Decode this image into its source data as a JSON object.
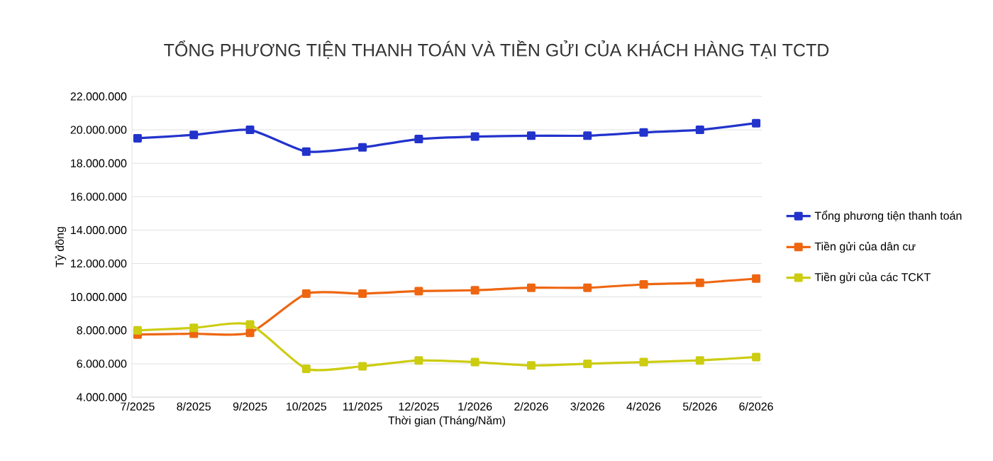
{
  "chart_data": {
    "type": "line",
    "title": "TỔNG PHƯƠNG TIỆN THANH TOÁN VÀ TIỀN GỬI CỦA KHÁCH HÀNG TẠI TCTD",
    "xlabel": "Thời gian (Tháng/Năm)",
    "ylabel": "Tỷ đồng",
    "categories": [
      "7/2025",
      "8/2025",
      "9/2025",
      "10/2025",
      "11/2025",
      "12/2025",
      "1/2026",
      "2/2026",
      "3/2026",
      "4/2026",
      "5/2026",
      "6/2026"
    ],
    "series": [
      {
        "name": "Tổng phương tiện thanh toán",
        "color": "#2233cc",
        "values": [
          19500000,
          19700000,
          20000000,
          18700000,
          18950000,
          19450000,
          19600000,
          19650000,
          19650000,
          19850000,
          20000000,
          20400000
        ]
      },
      {
        "name": "Tiền gửi của dân cư",
        "color": "#ee6611",
        "values": [
          7750000,
          7800000,
          7850000,
          10200000,
          10200000,
          10350000,
          10400000,
          10550000,
          10550000,
          10750000,
          10850000,
          11100000
        ]
      },
      {
        "name": "Tiền gửi của các TCKT",
        "color": "#cccc11",
        "values": [
          8000000,
          8150000,
          8350000,
          5700000,
          5850000,
          6200000,
          6100000,
          5900000,
          6000000,
          6100000,
          6200000,
          6400000
        ]
      }
    ],
    "ylim": [
      4000000,
      22000000
    ],
    "yticks": [
      {
        "value": 4000000,
        "label": "4.000.000"
      },
      {
        "value": 6000000,
        "label": "6.000.000"
      },
      {
        "value": 8000000,
        "label": "8.000.000"
      },
      {
        "value": 10000000,
        "label": "10.000.000"
      },
      {
        "value": 12000000,
        "label": "12.000.000"
      },
      {
        "value": 14000000,
        "label": "14.000.000"
      },
      {
        "value": 16000000,
        "label": "16.000.000"
      },
      {
        "value": 18000000,
        "label": "18.000.000"
      },
      {
        "value": 20000000,
        "label": "20.000.000"
      },
      {
        "value": 22000000,
        "label": "22.000.000"
      }
    ],
    "grid": "y",
    "legend": "right",
    "marker": "square",
    "line_style": "solid"
  }
}
